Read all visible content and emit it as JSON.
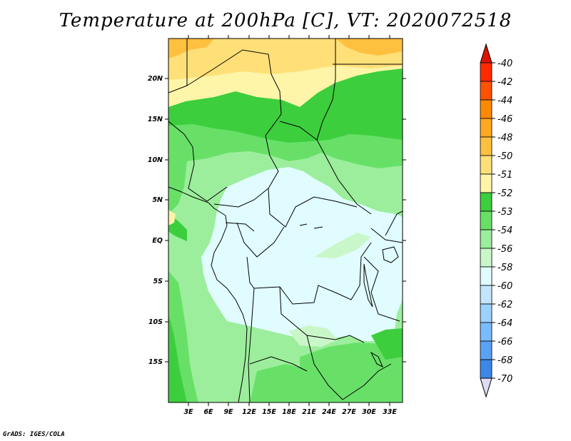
{
  "title": "Temperature at 200hPa [C], VT: 2020072518",
  "credit": "GrADS: IGES/COLA",
  "map": {
    "variable": "Temperature at 200hPa",
    "units": "C",
    "valid_time": "2020072518",
    "lat_ticks": [
      "20N",
      "15N",
      "10N",
      "5N",
      "EQ",
      "5S",
      "10S",
      "15S"
    ],
    "lon_ticks": [
      "3E",
      "6E",
      "9E",
      "12E",
      "15E",
      "18E",
      "21E",
      "24E",
      "27E",
      "30E",
      "33E"
    ],
    "land_color": "#ffffff"
  },
  "colorbar": {
    "labels": [
      "-40",
      "-42",
      "-44",
      "-46",
      "-48",
      "-50",
      "-51",
      "-52",
      "-53",
      "-54",
      "-56",
      "-58",
      "-60",
      "-62",
      "-64",
      "-66",
      "-68",
      "-70"
    ],
    "colors": [
      "#ff2a00",
      "#ff5200",
      "#ff8a00",
      "#ffa820",
      "#ffc040",
      "#ffe078",
      "#fff5a8",
      "#3dce3d",
      "#68e068",
      "#9cee9c",
      "#caf7ca",
      "#e0fcff",
      "#c2e6ff",
      "#9cd2ff",
      "#7abcff",
      "#5aa2f4",
      "#3c88e8",
      "#1e68d8",
      "#0a48c0",
      "#061a8c"
    ],
    "tip_top_color": "#dc1400",
    "tip_bottom_color": "#dcdcf5"
  }
}
